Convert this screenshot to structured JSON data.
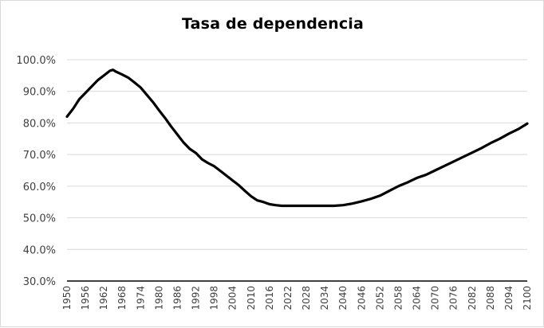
{
  "chart_data": {
    "type": "line",
    "title": "Tasa de dependencia",
    "xlabel": "",
    "ylabel": "",
    "ylim": [
      30,
      100
    ],
    "xlim": [
      1950,
      2100
    ],
    "grid": true,
    "legend": "none",
    "y_ticks": [
      "30.0%",
      "40.0%",
      "50.0%",
      "60.0%",
      "70.0%",
      "80.0%",
      "90.0%",
      "100.0%"
    ],
    "y_tick_values": [
      30,
      40,
      50,
      60,
      70,
      80,
      90,
      100
    ],
    "x_ticks": [
      "1950",
      "1956",
      "1962",
      "1968",
      "1974",
      "1980",
      "1986",
      "1992",
      "1998",
      "2004",
      "2010",
      "2016",
      "2022",
      "2028",
      "2034",
      "2040",
      "2046",
      "2052",
      "2058",
      "2064",
      "2070",
      "2076",
      "2082",
      "2088",
      "2094",
      "2100"
    ],
    "colors": {
      "line": "#000000",
      "grid": "#d9d9d9",
      "axis": "#000000"
    },
    "series": [
      {
        "x": [
          1950,
          1952,
          1954,
          1956,
          1958,
          1960,
          1962,
          1964,
          1965,
          1966,
          1968,
          1970,
          1972,
          1974,
          1976,
          1978,
          1980,
          1982,
          1984,
          1986,
          1988,
          1990,
          1992,
          1994,
          1996,
          1998,
          2000,
          2002,
          2004,
          2006,
          2008,
          2010,
          2012,
          2014,
          2016,
          2018,
          2020,
          2022,
          2025,
          2028,
          2031,
          2034,
          2037,
          2040,
          2043,
          2046,
          2049,
          2052,
          2055,
          2058,
          2061,
          2064,
          2067,
          2070,
          2073,
          2076,
          2079,
          2082,
          2085,
          2088,
          2091,
          2094,
          2097,
          2100
        ],
        "values": [
          82.0,
          84.5,
          87.5,
          89.5,
          91.5,
          93.5,
          95.0,
          96.5,
          96.8,
          96.2,
          95.3,
          94.3,
          92.8,
          91.2,
          88.9,
          86.6,
          84.0,
          81.5,
          78.8,
          76.3,
          73.8,
          71.8,
          70.5,
          68.5,
          67.3,
          66.3,
          64.8,
          63.3,
          61.8,
          60.3,
          58.5,
          56.8,
          55.5,
          55.0,
          54.3,
          54.0,
          53.8,
          53.8,
          53.8,
          53.8,
          53.8,
          53.8,
          53.8,
          54.0,
          54.5,
          55.2,
          56.0,
          57.0,
          58.5,
          60.0,
          61.2,
          62.6,
          63.6,
          65.0,
          66.4,
          67.8,
          69.2,
          70.6,
          72.0,
          73.6,
          75.0,
          76.6,
          78.0,
          79.8
        ]
      }
    ]
  }
}
